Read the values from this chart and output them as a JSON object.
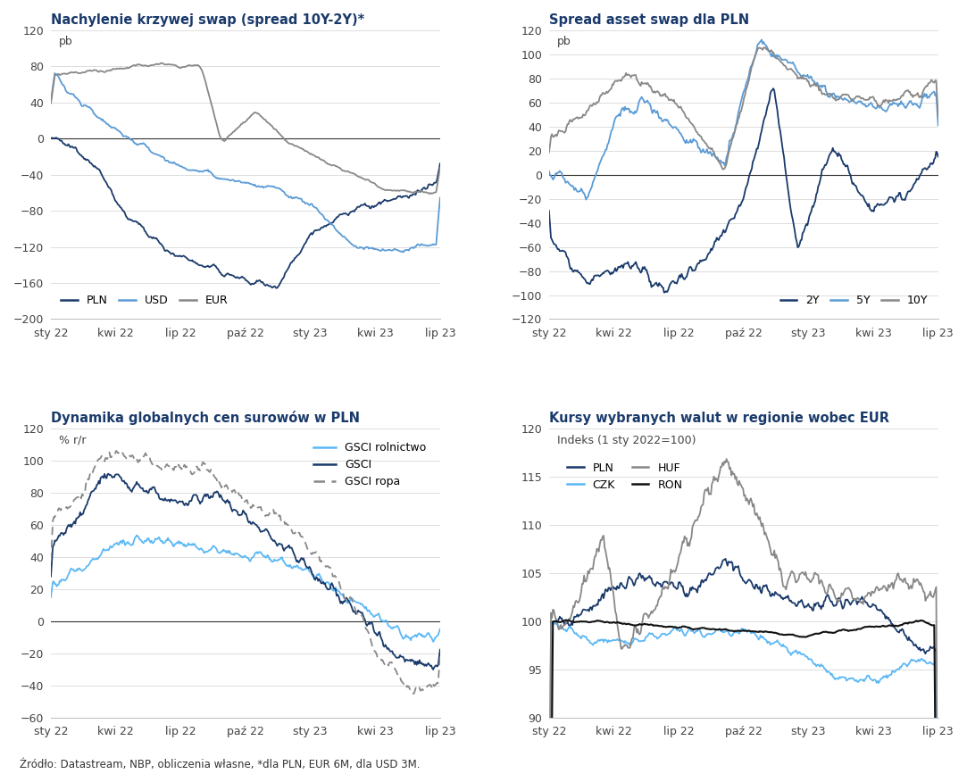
{
  "title_color": "#1a3a6b",
  "background_color": "#ffffff",
  "grid_color": "#d8d8d8",
  "zero_line_color": "#333333",
  "plot1": {
    "title": "Nachylenie krzywej swap (spread 10Y-2Y)*",
    "ylabel": "pb",
    "ylim": [
      -200,
      120
    ],
    "yticks": [
      -200,
      -160,
      -120,
      -80,
      -40,
      0,
      40,
      80,
      120
    ],
    "colors": {
      "PLN": "#1a3a6b",
      "USD": "#5b9bd5",
      "EUR": "#888888"
    }
  },
  "plot2": {
    "title": "Spread asset swap dla PLN",
    "ylabel": "pb",
    "ylim": [
      -120,
      120
    ],
    "yticks": [
      -120,
      -100,
      -80,
      -60,
      -40,
      -20,
      0,
      20,
      40,
      60,
      80,
      100,
      120
    ],
    "colors": {
      "2Y": "#1a3a6b",
      "5Y": "#5b9bd5",
      "10Y": "#888888"
    }
  },
  "plot3": {
    "title": "Dynamika globalnych cen surowów w PLN",
    "ylabel": "% r/r",
    "ylim": [
      -60,
      120
    ],
    "yticks": [
      -60,
      -40,
      -20,
      0,
      20,
      40,
      60,
      80,
      100,
      120
    ],
    "colors": {
      "GSCI rolnictwo": "#5bb8f5",
      "GSCI": "#1a3a6b",
      "GSCI ropa": "#888888"
    }
  },
  "plot4": {
    "title": "Kursy wybranych walut w regionie wobec EUR",
    "ylabel_text": "Indeks (1 sty 2022=100)",
    "ylim": [
      90,
      120
    ],
    "yticks": [
      90,
      95,
      100,
      105,
      110,
      115,
      120
    ],
    "colors": {
      "PLN": "#1a3a6b",
      "CZK": "#5bb8f5",
      "HUF": "#888888",
      "RON": "#111111"
    }
  },
  "xtick_labels": [
    "sty 22",
    "kwi 22",
    "lip 22",
    "paź 22",
    "sty 23",
    "kwi 23",
    "lip 23"
  ],
  "source_text": "Źródło: Datastream, NBP, obliczenia własne, *dla PLN, EUR 6M, dla USD 3M."
}
